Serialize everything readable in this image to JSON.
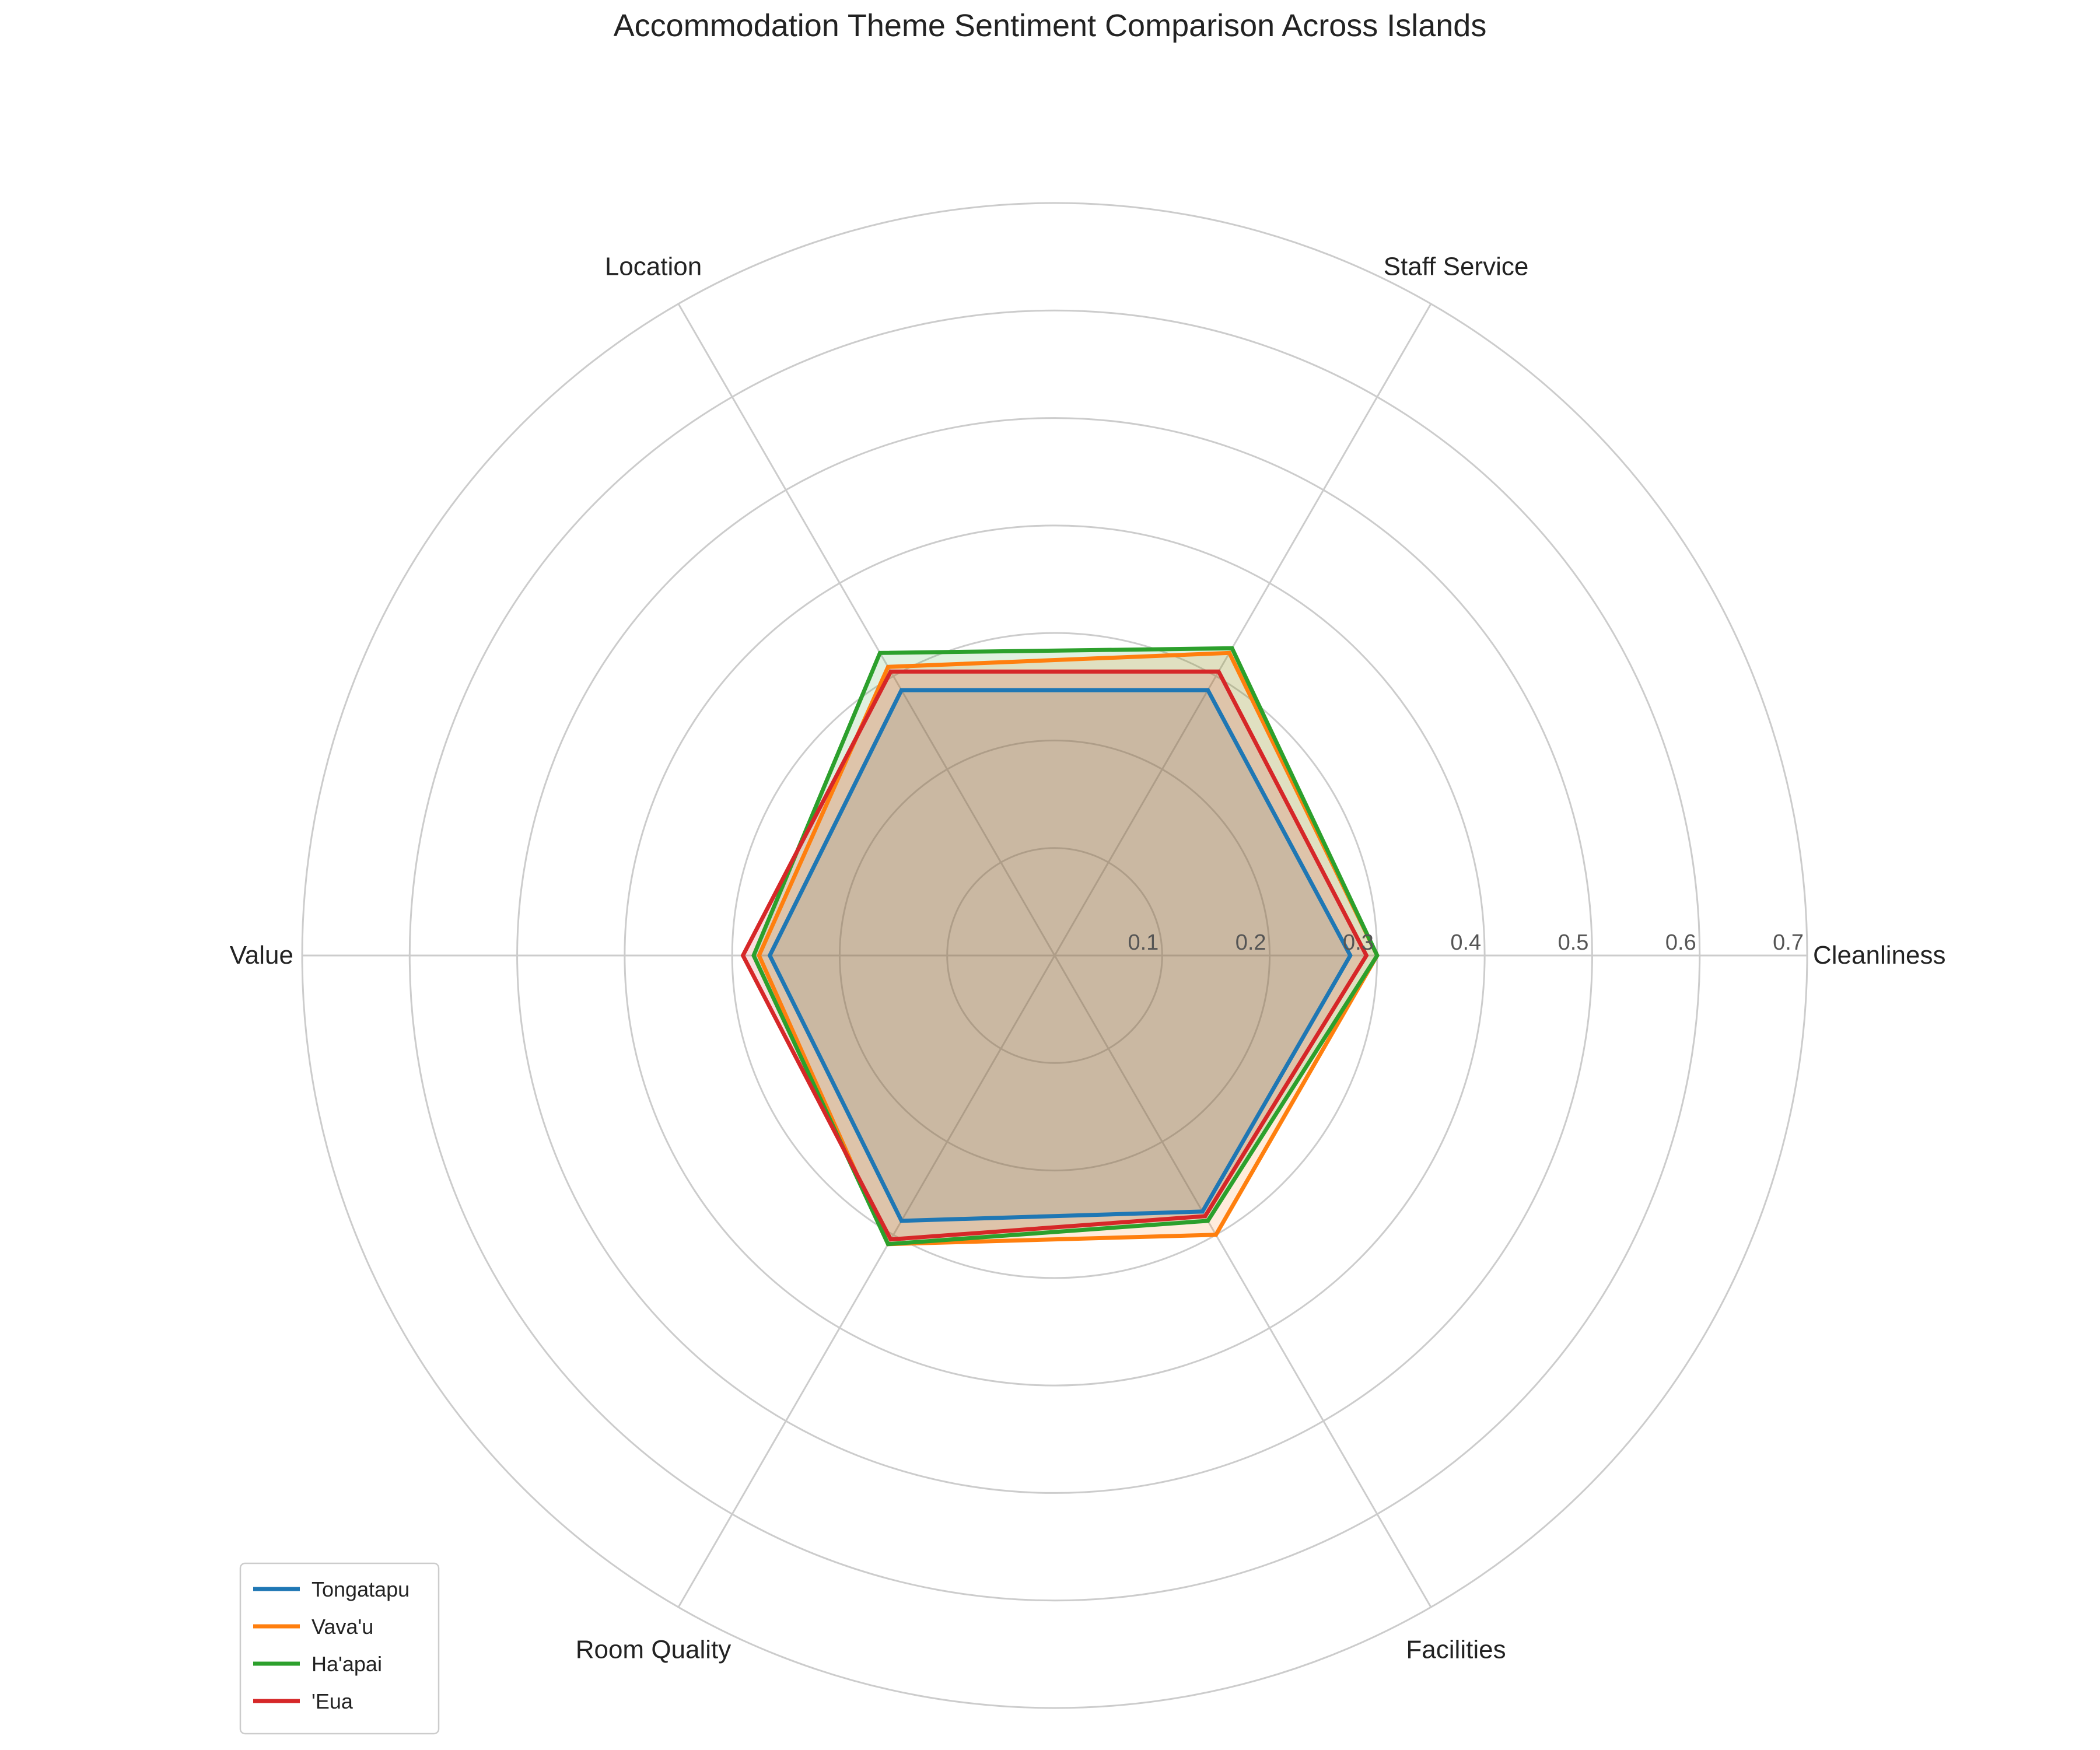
{
  "chart_data": {
    "type": "radar",
    "title": "Accommodation Theme Sentiment Comparison Across Islands",
    "categories": [
      "Cleanliness",
      "Staff Service",
      "Location",
      "Value",
      "Room Quality",
      "Facilities"
    ],
    "r_ticks": [
      "0.1",
      "0.2",
      "0.3",
      "0.4",
      "0.5",
      "0.6",
      "0.7"
    ],
    "r_tick_values": [
      0.1,
      0.2,
      0.3,
      0.4,
      0.5,
      0.6,
      0.7
    ],
    "rlim": [
      0,
      0.7
    ],
    "grid": true,
    "legend_position": "lower-left",
    "series": [
      {
        "name": "Tongatapu",
        "color": "#1f77b4",
        "values": [
          0.275,
          0.285,
          0.285,
          0.265,
          0.285,
          0.275
        ]
      },
      {
        "name": "Vava'u",
        "color": "#ff7f0e",
        "values": [
          0.3,
          0.325,
          0.31,
          0.275,
          0.31,
          0.3
        ]
      },
      {
        "name": "Ha'apai",
        "color": "#2ca02c",
        "values": [
          0.3,
          0.33,
          0.325,
          0.28,
          0.31,
          0.285
        ]
      },
      {
        "name": "'Eua",
        "color": "#d62728",
        "values": [
          0.29,
          0.305,
          0.305,
          0.29,
          0.305,
          0.28
        ]
      }
    ]
  }
}
